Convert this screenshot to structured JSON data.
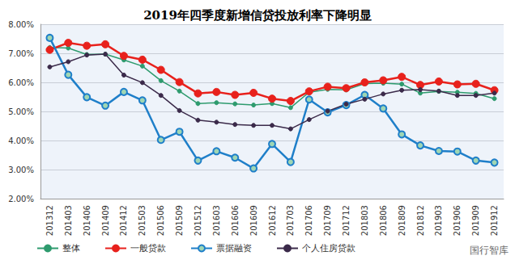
{
  "chart_data": {
    "type": "line",
    "title": "2019年四季度新增信贷投放利率下降明显",
    "categories": [
      "201312",
      "201403",
      "201406",
      "201409",
      "201412",
      "201503",
      "201506",
      "201509",
      "201512",
      "201603",
      "201606",
      "201609",
      "201612",
      "201703",
      "201706",
      "201709",
      "201712",
      "201803",
      "201806",
      "201809",
      "201812",
      "201903",
      "201906",
      "201909",
      "201912"
    ],
    "series": [
      {
        "name": "整体",
        "color": "#2e9b6e",
        "marker": "circle",
        "line_style": "solid",
        "values": [
          7.2,
          7.18,
          6.96,
          6.97,
          6.77,
          6.56,
          6.06,
          5.7,
          5.27,
          5.3,
          5.26,
          5.22,
          5.27,
          5.13,
          5.66,
          5.76,
          5.74,
          5.96,
          5.97,
          5.94,
          5.63,
          5.69,
          5.66,
          5.62,
          5.44
        ]
      },
      {
        "name": "一般贷款",
        "color": "#e8211c",
        "marker": "circle",
        "line_style": "solid",
        "values": [
          7.12,
          7.36,
          7.26,
          7.31,
          6.91,
          6.78,
          6.43,
          6.01,
          5.62,
          5.67,
          5.57,
          5.64,
          5.44,
          5.36,
          5.69,
          5.85,
          5.8,
          6.0,
          6.07,
          6.19,
          5.91,
          6.03,
          5.93,
          5.95,
          5.73
        ]
      },
      {
        "name": "票据融资",
        "color": "#1f7fc9",
        "marker": "circle",
        "line_style": "solid",
        "values": [
          7.53,
          6.26,
          5.49,
          5.2,
          5.67,
          5.38,
          4.02,
          4.3,
          3.31,
          3.63,
          3.41,
          3.04,
          3.88,
          3.26,
          5.41,
          4.97,
          5.22,
          5.57,
          5.1,
          4.21,
          3.83,
          3.64,
          3.62,
          3.31,
          3.24
        ]
      },
      {
        "name": "个人住房贷款",
        "color": "#3b2a4a",
        "marker": "circle",
        "line_style": "solid",
        "values": [
          6.53,
          6.71,
          6.94,
          6.97,
          6.25,
          5.99,
          5.55,
          5.03,
          4.7,
          4.63,
          4.55,
          4.52,
          4.52,
          4.4,
          4.72,
          5.01,
          5.25,
          5.42,
          5.6,
          5.73,
          5.75,
          5.7,
          5.55,
          5.55,
          5.63
        ]
      }
    ],
    "ylim": [
      2,
      8
    ],
    "yticks": [
      {
        "value": 2,
        "label": "2.00%"
      },
      {
        "value": 3,
        "label": "3.00%"
      },
      {
        "value": 4,
        "label": "4.00%"
      },
      {
        "value": 5,
        "label": "5.00%"
      },
      {
        "value": 6,
        "label": "6.00%"
      },
      {
        "value": 7,
        "label": "7.00%"
      },
      {
        "value": 8,
        "label": "8.00%"
      }
    ],
    "grid": true,
    "legend": "bottom",
    "annotations": [
      "国行智库"
    ]
  }
}
